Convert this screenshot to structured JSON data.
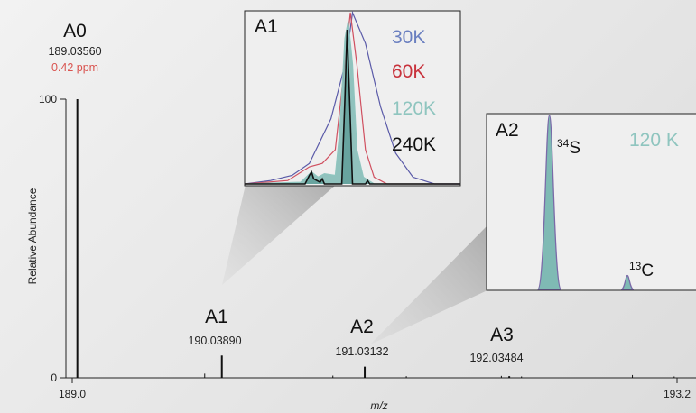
{
  "chart_data": {
    "type": "line",
    "xlabel": "m/z",
    "ylabel": "Relative Abundance",
    "xlim": [
      188.96,
      193.22
    ],
    "ylim": [
      0,
      100
    ],
    "x_ticks": [
      "189.0",
      "193.2"
    ],
    "y_ticks": [
      "0",
      "100"
    ],
    "peaks": [
      {
        "name": "A0",
        "mz": 189.0356,
        "mz_label": "189.03560",
        "ppm_label": "0.42 ppm",
        "abundance": 100
      },
      {
        "name": "A1",
        "mz": 190.0389,
        "mz_label": "190.03890",
        "abundance": 8
      },
      {
        "name": "A2",
        "mz": 191.03132,
        "mz_label": "191.03132",
        "abundance": 4
      },
      {
        "name": "A3",
        "mz": 192.03484,
        "mz_label": "192.03484",
        "abundance": 0.6
      }
    ],
    "noise_peaks": [
      {
        "mz": 189.92,
        "abundance": 1.5
      },
      {
        "mz": 190.81,
        "abundance": 0.8
      },
      {
        "mz": 191.32,
        "abundance": 0.6
      },
      {
        "mz": 191.98,
        "abundance": 0.7
      },
      {
        "mz": 192.12,
        "abundance": 0.5
      },
      {
        "mz": 192.89,
        "abundance": 1.0
      },
      {
        "mz": 193.18,
        "abundance": 0.5
      }
    ],
    "insets": [
      {
        "title": "A1",
        "legend": [
          {
            "label": "30K",
            "color": "#6a7fc0"
          },
          {
            "label": "60K",
            "color": "#c8323c"
          },
          {
            "label": "120K",
            "color": "#8fc5bf"
          },
          {
            "label": "240K",
            "color": "#111111"
          }
        ],
        "series": [
          {
            "resolution": "30K",
            "color": "#5a5aa8",
            "points": [
              [
                0,
                0
              ],
              [
                0.12,
                0.02
              ],
              [
                0.22,
                0.05
              ],
              [
                0.3,
                0.12
              ],
              [
                0.4,
                0.38
              ],
              [
                0.47,
                0.72
              ],
              [
                0.5,
                1.0
              ],
              [
                0.56,
                0.82
              ],
              [
                0.63,
                0.45
              ],
              [
                0.7,
                0.18
              ],
              [
                0.78,
                0.04
              ],
              [
                0.88,
                0.0
              ],
              [
                1,
                0
              ]
            ]
          },
          {
            "resolution": "60K",
            "color": "#d05060",
            "points": [
              [
                0,
                0
              ],
              [
                0.2,
                0.02
              ],
              [
                0.3,
                0.1
              ],
              [
                0.36,
                0.12
              ],
              [
                0.42,
                0.2
              ],
              [
                0.46,
                0.65
              ],
              [
                0.49,
                1.0
              ],
              [
                0.52,
                0.7
              ],
              [
                0.56,
                0.2
              ],
              [
                0.6,
                0.04
              ],
              [
                0.66,
                0.0
              ],
              [
                1,
                0
              ]
            ]
          },
          {
            "resolution": "120K",
            "color": "#8fc5bf",
            "points": [
              [
                0,
                0
              ],
              [
                0.26,
                0.01
              ],
              [
                0.31,
                0.07
              ],
              [
                0.34,
                0.04
              ],
              [
                0.37,
                0.06
              ],
              [
                0.42,
                0.05
              ],
              [
                0.44,
                0.3
              ],
              [
                0.465,
                0.85
              ],
              [
                0.48,
                0.95
              ],
              [
                0.5,
                0.7
              ],
              [
                0.52,
                0.2
              ],
              [
                0.55,
                0.04
              ],
              [
                0.6,
                0.0
              ],
              [
                1,
                0
              ]
            ]
          },
          {
            "resolution": "240K",
            "color": "#111111",
            "points": [
              [
                0,
                0
              ],
              [
                0.28,
                0.0
              ],
              [
                0.3,
                0.05
              ],
              [
                0.31,
                0.07
              ],
              [
                0.32,
                0.03
              ],
              [
                0.35,
                0.01
              ],
              [
                0.36,
                0.03
              ],
              [
                0.37,
                0.0
              ],
              [
                0.45,
                0.0
              ],
              [
                0.465,
                0.5
              ],
              [
                0.475,
                0.9
              ],
              [
                0.485,
                0.55
              ],
              [
                0.5,
                0.0
              ],
              [
                0.56,
                0.0
              ],
              [
                0.57,
                0.02
              ],
              [
                0.58,
                0.0
              ],
              [
                1,
                0
              ]
            ]
          }
        ]
      },
      {
        "title": "A2",
        "resolution_label": "120 K",
        "resolution_color": "#8fc5bf",
        "isotopes": [
          {
            "label_sup": "34",
            "label_el": "S",
            "mz_frac": 0.29,
            "height": 1.0
          },
          {
            "label_sup": "13",
            "label_el": "C",
            "mz_frac": 0.65,
            "height": 0.08
          }
        ]
      }
    ]
  }
}
